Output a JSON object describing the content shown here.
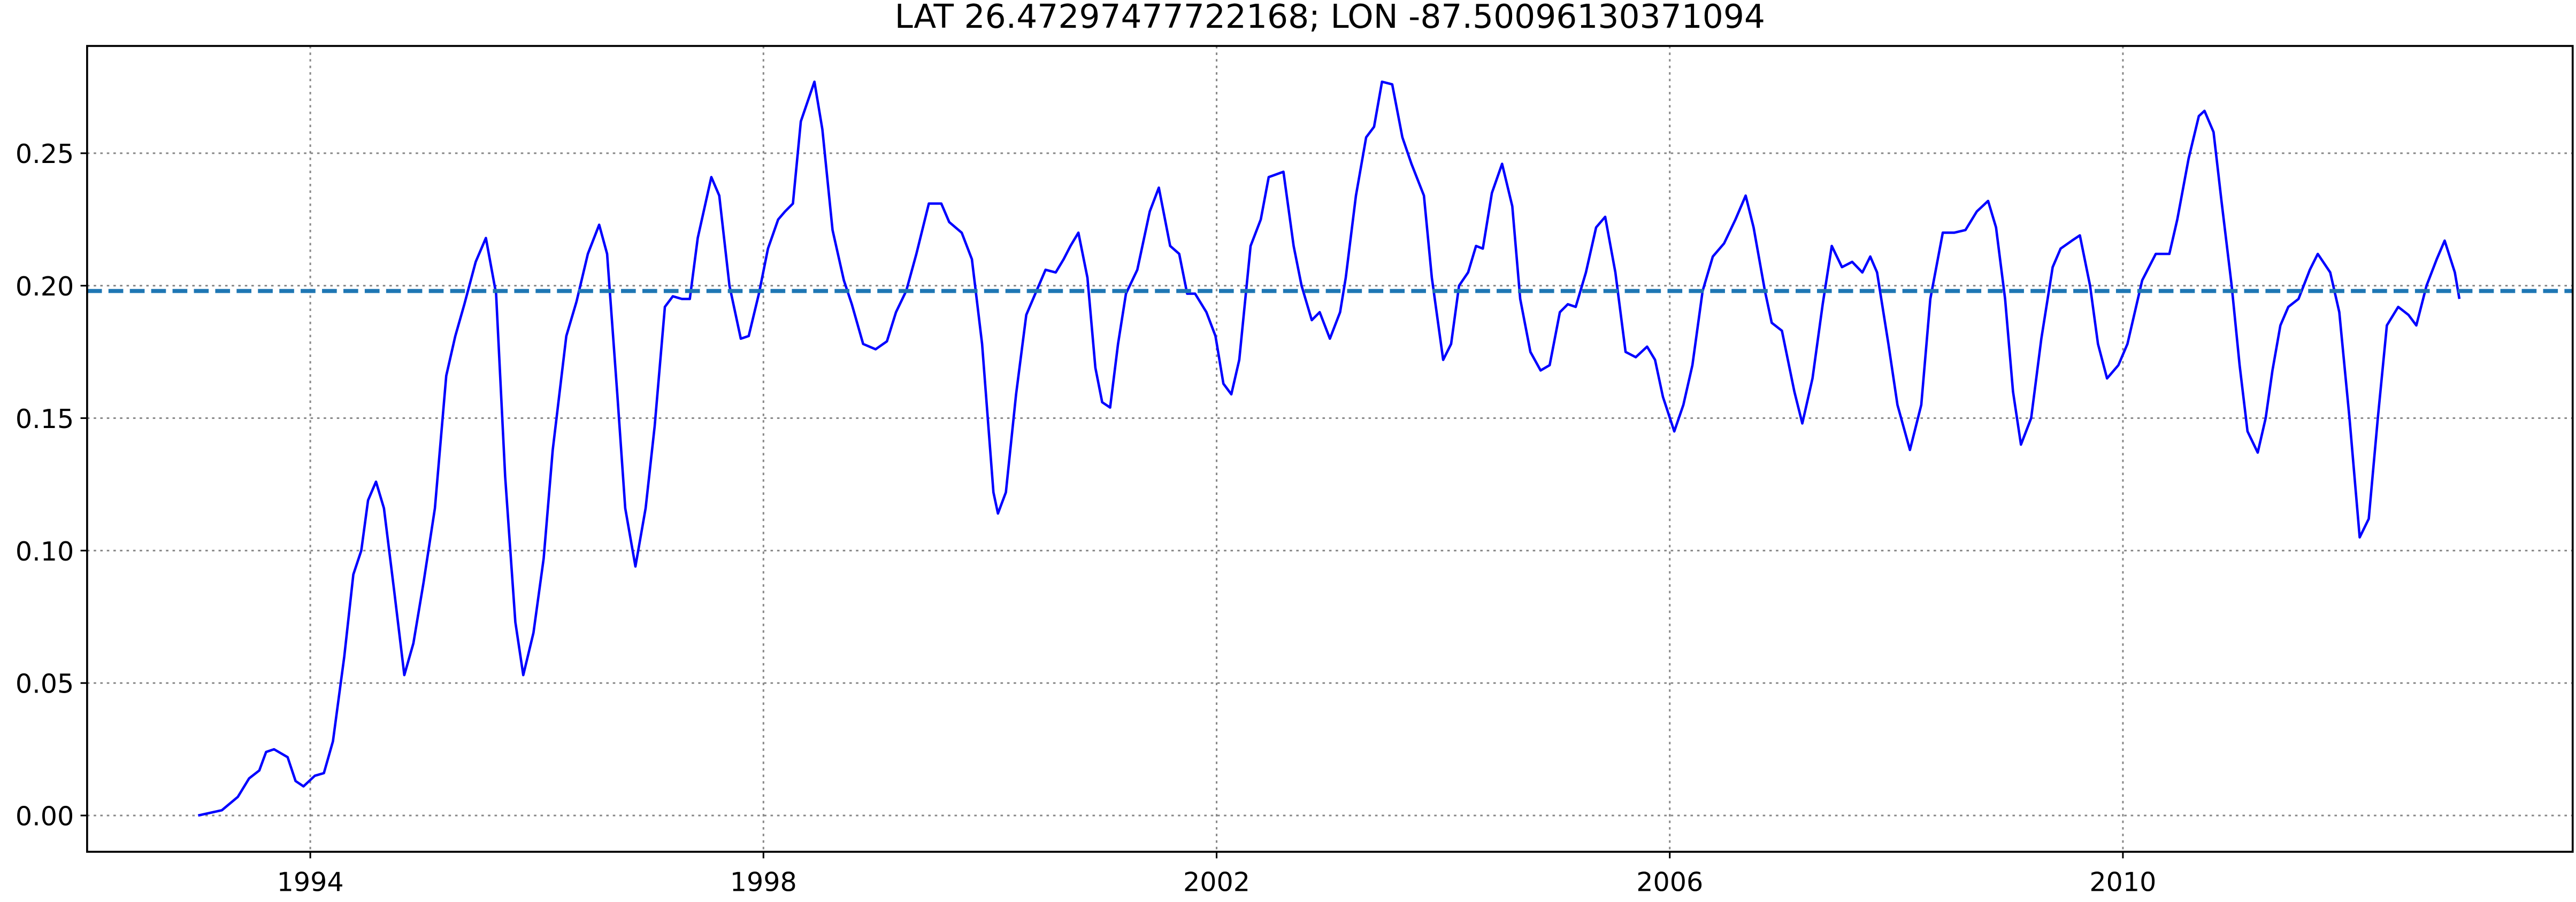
{
  "chart_data": {
    "type": "line",
    "title": "LAT 26.47297477722168; LON -87.50096130371094",
    "x": [
      1993.01,
      1993.22,
      1993.36,
      1993.46,
      1993.55,
      1993.61,
      1993.68,
      1993.8,
      1993.87,
      1993.94,
      1994.04,
      1994.12,
      1994.2,
      1994.3,
      1994.38,
      1994.45,
      1994.51,
      1994.58,
      1994.65,
      1994.74,
      1994.83,
      1994.91,
      1995.0,
      1995.1,
      1995.2,
      1995.28,
      1995.36,
      1995.46,
      1995.55,
      1995.64,
      1995.72,
      1995.81,
      1995.88,
      1995.97,
      1996.06,
      1996.14,
      1996.26,
      1996.35,
      1996.45,
      1996.55,
      1996.62,
      1996.71,
      1996.78,
      1996.87,
      1996.96,
      1997.04,
      1997.13,
      1997.2,
      1997.28,
      1997.35,
      1997.42,
      1997.54,
      1997.61,
      1997.7,
      1997.8,
      1997.87,
      1997.96,
      1998.04,
      1998.13,
      1998.19,
      1998.26,
      1998.33,
      1998.45,
      1998.52,
      1998.61,
      1998.71,
      1998.78,
      1998.88,
      1998.99,
      1999.09,
      1999.17,
      1999.26,
      1999.35,
      1999.46,
      1999.57,
      1999.64,
      1999.75,
      1999.84,
      1999.93,
      2000.03,
      2000.07,
      2000.14,
      2000.23,
      2000.32,
      2000.41,
      2000.49,
      2000.58,
      2000.65,
      2000.71,
      2000.78,
      2000.86,
      2000.93,
      2000.99,
      2001.06,
      2001.13,
      2001.2,
      2001.3,
      2001.41,
      2001.49,
      2001.59,
      2001.67,
      2001.74,
      2001.81,
      2001.91,
      2001.99,
      2002.06,
      2002.13,
      2002.2,
      2002.3,
      2002.39,
      2002.46,
      2002.59,
      2002.68,
      2002.75,
      2002.84,
      2002.91,
      2003.0,
      2003.09,
      2003.14,
      2003.23,
      2003.32,
      2003.39,
      2003.46,
      2003.55,
      2003.64,
      2003.72,
      2003.83,
      2003.9,
      2004.0,
      2004.07,
      2004.14,
      2004.22,
      2004.29,
      2004.35,
      2004.43,
      2004.52,
      2004.61,
      2004.68,
      2004.77,
      2004.86,
      2004.94,
      2005.03,
      2005.1,
      2005.17,
      2005.26,
      2005.35,
      2005.43,
      2005.52,
      2005.61,
      2005.7,
      2005.8,
      2005.87,
      2005.94,
      2006.04,
      2006.12,
      2006.2,
      2006.29,
      2006.38,
      2006.48,
      2006.58,
      2006.67,
      2006.74,
      2006.84,
      2006.9,
      2006.99,
      2007.1,
      2007.17,
      2007.26,
      2007.35,
      2007.43,
      2007.52,
      2007.61,
      2007.7,
      2007.77,
      2007.83,
      2007.93,
      2008.01,
      2008.12,
      2008.22,
      2008.3,
      2008.41,
      2008.51,
      2008.61,
      2008.71,
      2008.81,
      2008.88,
      2008.96,
      2009.03,
      2009.1,
      2009.19,
      2009.28,
      2009.38,
      2009.45,
      2009.55,
      2009.62,
      2009.71,
      2009.78,
      2009.86,
      2009.96,
      2010.04,
      2010.17,
      2010.29,
      2010.41,
      2010.48,
      2010.58,
      2010.67,
      2010.72,
      2010.8,
      2010.87,
      2010.96,
      2011.03,
      2011.1,
      2011.19,
      2011.26,
      2011.32,
      2011.39,
      2011.46,
      2011.55,
      2011.65,
      2011.72,
      2011.83,
      2011.91,
      2012.0,
      2012.09,
      2012.17,
      2012.25,
      2012.33,
      2012.43,
      2012.52,
      2012.59,
      2012.68,
      2012.77,
      2012.84,
      2012.93,
      2012.97
    ],
    "series": [
      {
        "color": "#0000ff",
        "values": [
          0,
          0.002,
          0.007,
          0.014,
          0.017,
          0.024,
          0.025,
          0.022,
          0.013,
          0.011,
          0.015,
          0.016,
          0.028,
          0.06,
          0.091,
          0.1,
          0.119,
          0.126,
          0.116,
          0.085,
          0.053,
          0.065,
          0.088,
          0.116,
          0.166,
          0.181,
          0.193,
          0.209,
          0.218,
          0.197,
          0.128,
          0.073,
          0.053,
          0.069,
          0.097,
          0.138,
          0.181,
          0.194,
          0.212,
          0.223,
          0.212,
          0.159,
          0.116,
          0.094,
          0.116,
          0.147,
          0.192,
          0.196,
          0.195,
          0.195,
          0.218,
          0.241,
          0.234,
          0.2,
          0.18,
          0.181,
          0.197,
          0.214,
          0.225,
          0.228,
          0.231,
          0.262,
          0.277,
          0.259,
          0.221,
          0.202,
          0.193,
          0.178,
          0.176,
          0.179,
          0.19,
          0.198,
          0.212,
          0.231,
          0.231,
          0.224,
          0.22,
          0.21,
          0.178,
          0.122,
          0.114,
          0.122,
          0.159,
          0.189,
          0.198,
          0.206,
          0.205,
          0.21,
          0.215,
          0.22,
          0.203,
          0.169,
          0.156,
          0.154,
          0.178,
          0.197,
          0.206,
          0.228,
          0.237,
          0.215,
          0.212,
          0.197,
          0.197,
          0.19,
          0.181,
          0.163,
          0.159,
          0.172,
          0.215,
          0.225,
          0.241,
          0.243,
          0.215,
          0.2,
          0.187,
          0.19,
          0.18,
          0.19,
          0.203,
          0.234,
          0.256,
          0.26,
          0.277,
          0.276,
          0.256,
          0.246,
          0.234,
          0.203,
          0.172,
          0.178,
          0.2,
          0.205,
          0.215,
          0.214,
          0.235,
          0.246,
          0.23,
          0.195,
          0.175,
          0.168,
          0.17,
          0.19,
          0.193,
          0.192,
          0.205,
          0.222,
          0.226,
          0.205,
          0.175,
          0.173,
          0.177,
          0.172,
          0.158,
          0.145,
          0.155,
          0.17,
          0.198,
          0.211,
          0.216,
          0.225,
          0.234,
          0.222,
          0.198,
          0.186,
          0.183,
          0.16,
          0.148,
          0.165,
          0.193,
          0.215,
          0.207,
          0.209,
          0.205,
          0.211,
          0.205,
          0.178,
          0.155,
          0.138,
          0.155,
          0.195,
          0.22,
          0.22,
          0.221,
          0.228,
          0.232,
          0.222,
          0.195,
          0.16,
          0.14,
          0.15,
          0.18,
          0.207,
          0.214,
          0.217,
          0.219,
          0.2,
          0.178,
          0.165,
          0.17,
          0.178,
          0.202,
          0.212,
          0.212,
          0.225,
          0.248,
          0.264,
          0.266,
          0.258,
          0.232,
          0.2,
          0.17,
          0.145,
          0.137,
          0.15,
          0.168,
          0.185,
          0.192,
          0.195,
          0.206,
          0.212,
          0.205,
          0.19,
          0.15,
          0.105,
          0.112,
          0.15,
          0.185,
          0.192,
          0.189,
          0.185,
          0.2,
          0.21,
          0.217,
          0.205,
          0.195
        ]
      }
    ],
    "hline": {
      "value": 0.198,
      "color": "#1f77b4"
    },
    "xlim": [
      1992.03,
      2013.97
    ],
    "ylim": [
      -0.0137,
      0.2905
    ],
    "xticks": [
      1994,
      1998,
      2002,
      2006,
      2010
    ],
    "yticks": [
      {
        "value": 0,
        "label": "0.00"
      },
      0.05,
      {
        "value": 0.1,
        "label": "0.10"
      },
      0.15,
      {
        "value": 0.2,
        "label": "0.20"
      },
      0.25
    ],
    "grid": true
  }
}
